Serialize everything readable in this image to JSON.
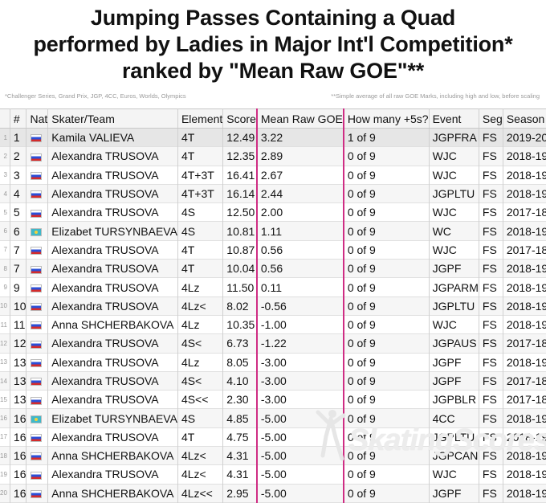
{
  "title": {
    "line1": "Jumping Passes Containing a Quad",
    "line2": "performed by Ladies in Major Int'l Competition*",
    "line3": "ranked by \"Mean Raw GOE\"**"
  },
  "notes": {
    "left": "*Challenger Series, Grand Prix, JGP, 4CC, Euros, Worlds, Olympics",
    "right": "**Simple average of all raw GOE Marks, including high and low, before scaling"
  },
  "columns": [
    "#",
    "Nat",
    "Skater/Team",
    "Element",
    "Score",
    "Mean Raw GOE",
    "How many +5s?",
    "Event",
    "Seg",
    "Season"
  ],
  "rows": [
    {
      "idx": "1",
      "rank": "1",
      "nat": "rus",
      "skater": "Kamila VALIEVA",
      "element": "4T",
      "score": "12.49",
      "goe": "3.22",
      "fives": "1 of 9",
      "event": "JGPFRA",
      "seg": "FS",
      "season": "2019-20"
    },
    {
      "idx": "2",
      "rank": "2",
      "nat": "rus",
      "skater": "Alexandra TRUSOVA",
      "element": "4T",
      "score": "12.35",
      "goe": "2.89",
      "fives": "0 of 9",
      "event": "WJC",
      "seg": "FS",
      "season": "2018-19"
    },
    {
      "idx": "3",
      "rank": "3",
      "nat": "rus",
      "skater": "Alexandra TRUSOVA",
      "element": "4T+3T",
      "score": "16.41",
      "goe": "2.67",
      "fives": "0 of 9",
      "event": "WJC",
      "seg": "FS",
      "season": "2018-19"
    },
    {
      "idx": "4",
      "rank": "4",
      "nat": "rus",
      "skater": "Alexandra TRUSOVA",
      "element": "4T+3T",
      "score": "16.14",
      "goe": "2.44",
      "fives": "0 of 9",
      "event": "JGPLTU",
      "seg": "FS",
      "season": "2018-19"
    },
    {
      "idx": "5",
      "rank": "5",
      "nat": "rus",
      "skater": "Alexandra TRUSOVA",
      "element": "4S",
      "score": "12.50",
      "goe": "2.00",
      "fives": "0 of 9",
      "event": "WJC",
      "seg": "FS",
      "season": "2017-18"
    },
    {
      "idx": "6",
      "rank": "6",
      "nat": "kaz",
      "skater": "Elizabet TURSYNBAEVA",
      "element": "4S",
      "score": "10.81",
      "goe": "1.11",
      "fives": "0 of 9",
      "event": "WC",
      "seg": "FS",
      "season": "2018-19"
    },
    {
      "idx": "7",
      "rank": "7",
      "nat": "rus",
      "skater": "Alexandra TRUSOVA",
      "element": "4T",
      "score": "10.87",
      "goe": "0.56",
      "fives": "0 of 9",
      "event": "WJC",
      "seg": "FS",
      "season": "2017-18"
    },
    {
      "idx": "8",
      "rank": "7",
      "nat": "rus",
      "skater": "Alexandra TRUSOVA",
      "element": "4T",
      "score": "10.04",
      "goe": "0.56",
      "fives": "0 of 9",
      "event": "JGPF",
      "seg": "FS",
      "season": "2018-19"
    },
    {
      "idx": "9",
      "rank": "9",
      "nat": "rus",
      "skater": "Alexandra TRUSOVA",
      "element": "4Lz",
      "score": "11.50",
      "goe": "0.11",
      "fives": "0 of 9",
      "event": "JGPARM",
      "seg": "FS",
      "season": "2018-19"
    },
    {
      "idx": "10",
      "rank": "10",
      "nat": "rus",
      "skater": "Alexandra TRUSOVA",
      "element": "4Lz<",
      "score": "8.02",
      "goe": "-0.56",
      "fives": "0 of 9",
      "event": "JGPLTU",
      "seg": "FS",
      "season": "2018-19"
    },
    {
      "idx": "11",
      "rank": "11",
      "nat": "rus",
      "skater": "Anna SHCHERBAKOVA",
      "element": "4Lz",
      "score": "10.35",
      "goe": "-1.00",
      "fives": "0 of 9",
      "event": "WJC",
      "seg": "FS",
      "season": "2018-19"
    },
    {
      "idx": "12",
      "rank": "12",
      "nat": "rus",
      "skater": "Alexandra TRUSOVA",
      "element": "4S<",
      "score": "6.73",
      "goe": "-1.22",
      "fives": "0 of 9",
      "event": "JGPAUS",
      "seg": "FS",
      "season": "2017-18"
    },
    {
      "idx": "13",
      "rank": "13",
      "nat": "rus",
      "skater": "Alexandra TRUSOVA",
      "element": "4Lz",
      "score": "8.05",
      "goe": "-3.00",
      "fives": "0 of 9",
      "event": "JGPF",
      "seg": "FS",
      "season": "2018-19"
    },
    {
      "idx": "14",
      "rank": "13",
      "nat": "rus",
      "skater": "Alexandra TRUSOVA",
      "element": "4S<",
      "score": "4.10",
      "goe": "-3.00",
      "fives": "0 of 9",
      "event": "JGPF",
      "seg": "FS",
      "season": "2017-18"
    },
    {
      "idx": "15",
      "rank": "13",
      "nat": "rus",
      "skater": "Alexandra TRUSOVA",
      "element": "4S<<",
      "score": "2.30",
      "goe": "-3.00",
      "fives": "0 of 9",
      "event": "JGPBLR",
      "seg": "FS",
      "season": "2017-18"
    },
    {
      "idx": "16",
      "rank": "16",
      "nat": "kaz",
      "skater": "Elizabet TURSYNBAEVA",
      "element": "4S",
      "score": "4.85",
      "goe": "-5.00",
      "fives": "0 of 9",
      "event": "4CC",
      "seg": "FS",
      "season": "2018-19"
    },
    {
      "idx": "17",
      "rank": "16",
      "nat": "rus",
      "skater": "Alexandra TRUSOVA",
      "element": "4T",
      "score": "4.75",
      "goe": "-5.00",
      "fives": "0 of 9",
      "event": "JGPLTU",
      "seg": "FS",
      "season": "2018-19"
    },
    {
      "idx": "18",
      "rank": "16",
      "nat": "rus",
      "skater": "Anna SHCHERBAKOVA",
      "element": "4Lz<",
      "score": "4.31",
      "goe": "-5.00",
      "fives": "0 of 9",
      "event": "JGPCAN",
      "seg": "FS",
      "season": "2018-19"
    },
    {
      "idx": "19",
      "rank": "16",
      "nat": "rus",
      "skater": "Alexandra TRUSOVA",
      "element": "4Lz<",
      "score": "4.31",
      "goe": "-5.00",
      "fives": "0 of 9",
      "event": "WJC",
      "seg": "FS",
      "season": "2018-19"
    },
    {
      "idx": "20",
      "rank": "16",
      "nat": "rus",
      "skater": "Anna SHCHERBAKOVA",
      "element": "4Lz<<",
      "score": "2.95",
      "goe": "-5.00",
      "fives": "0 of 9",
      "event": "JGPF",
      "seg": "FS",
      "season": "2018-19"
    }
  ],
  "flags": {
    "rus": "russia-flag-icon",
    "kaz": "kazakhstan-flag-icon"
  },
  "highlight_color": "#cf2d84",
  "watermark": "SkatingScores"
}
